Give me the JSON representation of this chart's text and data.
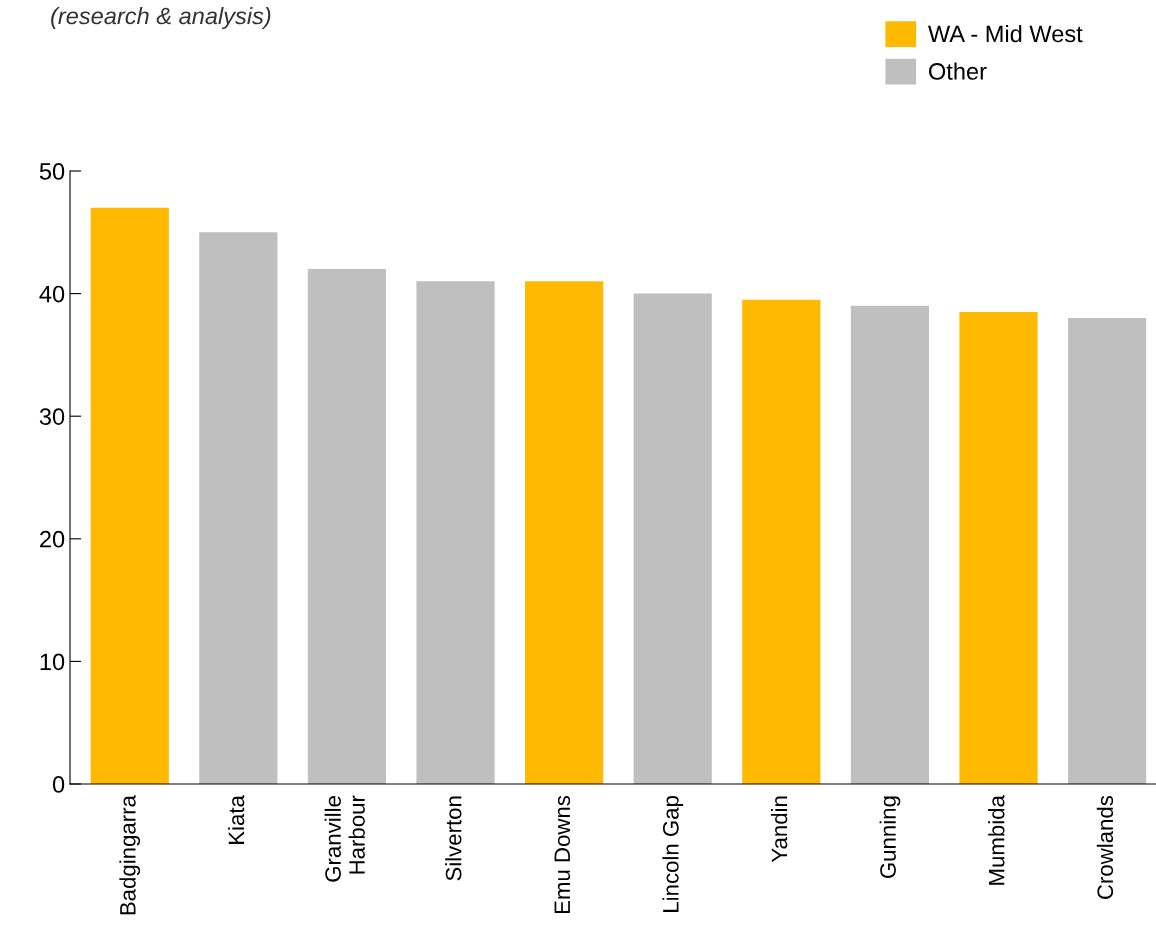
{
  "chart_data": {
    "type": "bar",
    "annotations": [
      "(research & analysis)"
    ],
    "categories": [
      "Badgingarra",
      "Kiata",
      "Granville\nHarbour",
      "Silverton",
      "Emu Downs",
      "Lincoln Gap",
      "Yandin",
      "Gunning",
      "Mumbida",
      "Crowlands"
    ],
    "series": [
      {
        "name": "WA - Mid West",
        "color": "#ffb900",
        "values": [
          47,
          null,
          null,
          null,
          41,
          null,
          39.5,
          null,
          38.5,
          null
        ]
      },
      {
        "name": "Other",
        "color": "#bfbfbf",
        "values": [
          null,
          45,
          42,
          41,
          null,
          40,
          null,
          39,
          null,
          38
        ]
      }
    ],
    "ylim": [
      0,
      50
    ],
    "yticks": [
      0,
      10,
      20,
      30,
      40,
      50
    ],
    "grid": false,
    "legend": "top right"
  }
}
